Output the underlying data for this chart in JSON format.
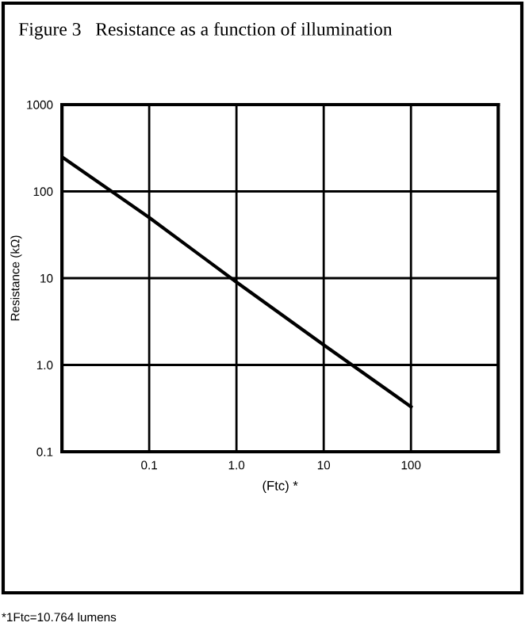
{
  "chart_data": {
    "type": "line",
    "title": "Figure 3   Resistance as a function of illumination",
    "xlabel": "(Ftc) *",
    "ylabel": "Resistance (kΩ)",
    "annotations": [
      "*1Ftc=10.764 lumens"
    ],
    "x": [
      0.01,
      0.1,
      1,
      10,
      100
    ],
    "series": [
      {
        "color": "#000000",
        "values": [
          250,
          50,
          9,
          1.7,
          0.33
        ]
      }
    ],
    "log": "xy",
    "xlim": [
      0.01,
      1000
    ],
    "ylim": [
      0.1,
      1000
    ],
    "xticks": [
      {
        "value": 0.1,
        "label": "0.1"
      },
      {
        "value": 1,
        "label": "1.0"
      },
      {
        "value": 10,
        "label": "10"
      },
      {
        "value": 100,
        "label": "100"
      }
    ],
    "yticks": [
      {
        "value": 0.1,
        "label": "0.1"
      },
      {
        "value": 1,
        "label": "1.0"
      },
      {
        "value": 10,
        "label": "10"
      },
      {
        "value": 100,
        "label": "100"
      },
      {
        "value": 1000,
        "label": "1000"
      }
    ],
    "grid": true,
    "marker": "none",
    "line_style": "solid"
  }
}
